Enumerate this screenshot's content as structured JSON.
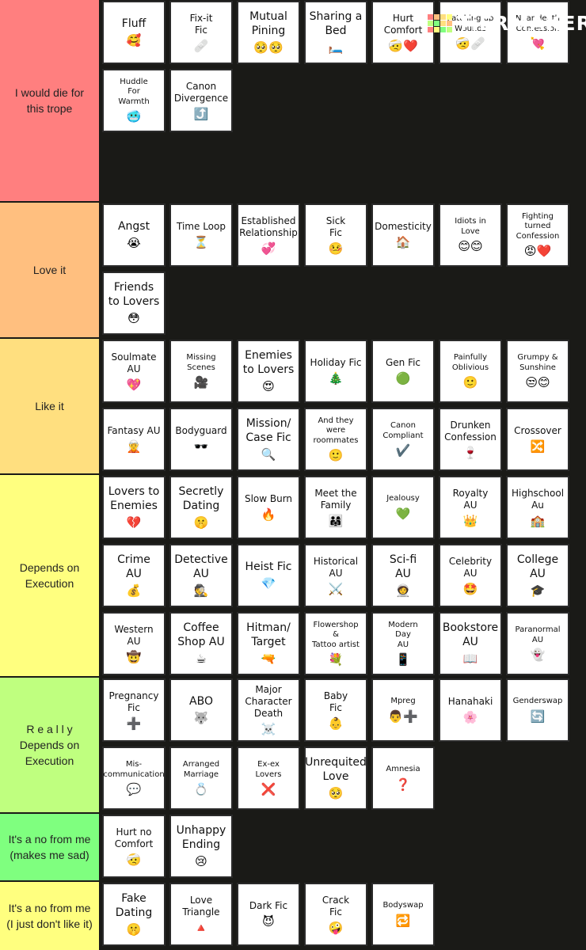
{
  "logo": {
    "text": "TiERMAKER",
    "grid_colors": [
      "#ff7f7f",
      "#ffbf7f",
      "#ffdf7f",
      "#ffff7f",
      "#bfff7f",
      "#7fff7f",
      "#ffdf7f",
      "#ffbf7f",
      "#ff7f7f",
      "#ffff7f",
      "#7fff7f",
      "#bfff7f"
    ]
  },
  "tiers": [
    {
      "label": "I would die for\nthis trope",
      "color": "#ff7f7f",
      "items": [
        {
          "title": "Fluff",
          "emoji": "🥰",
          "size": "lg"
        },
        {
          "title": "Fix-it\nFic",
          "emoji": "🩹",
          "size": "md"
        },
        {
          "title": "Mutual\nPining",
          "emoji": "🥺🥺",
          "size": "lg"
        },
        {
          "title": "Sharing a\nBed",
          "emoji": "🛏️",
          "size": "lg"
        },
        {
          "title": "Hurt\nComfort",
          "emoji": "🤕❤️",
          "size": "md"
        },
        {
          "title": "Patching up\nWounds",
          "emoji": "🤕🩹",
          "size": "sm"
        },
        {
          "title": "Near death\nConfession",
          "emoji": "💘",
          "size": "sm"
        },
        {
          "title": "Huddle\nFor\nWarmth",
          "emoji": "🥶",
          "size": "sm"
        },
        {
          "title": "Canon\nDivergence",
          "emoji": "⤴️",
          "size": "md"
        }
      ]
    },
    {
      "label": "Love it",
      "color": "#ffbf7f",
      "items": [
        {
          "title": "Angst",
          "emoji": "😭",
          "size": "lg"
        },
        {
          "title": "Time Loop",
          "emoji": "⏳",
          "size": "md"
        },
        {
          "title": "Established\nRelationship",
          "emoji": "💞",
          "size": "md"
        },
        {
          "title": "Sick\nFic",
          "emoji": "🤒",
          "size": "md"
        },
        {
          "title": "Domesticity",
          "emoji": "🏠",
          "size": "md"
        },
        {
          "title": "Idiots in\nLove",
          "emoji": "😊😊",
          "size": "sm"
        },
        {
          "title": "Fighting\nturned\nConfession",
          "emoji": "😡❤️",
          "size": "sm"
        },
        {
          "title": "Friends\nto Lovers",
          "emoji": "😳",
          "size": "lg"
        }
      ]
    },
    {
      "label": "Like it",
      "color": "#ffdf7f",
      "items": [
        {
          "title": "Soulmate\nAU",
          "emoji": "💖",
          "size": "md"
        },
        {
          "title": "Missing\nScenes",
          "emoji": "🎥",
          "size": "sm"
        },
        {
          "title": "Enemies\nto Lovers",
          "emoji": "😍",
          "size": "lg"
        },
        {
          "title": "Holiday Fic",
          "emoji": "🎄",
          "size": "md"
        },
        {
          "title": "Gen Fic",
          "emoji": "🟢",
          "size": "md"
        },
        {
          "title": "Painfully\nOblivious",
          "emoji": "🙂",
          "size": "sm"
        },
        {
          "title": "Grumpy &\nSunshine",
          "emoji": "😒😊",
          "size": "sm"
        },
        {
          "title": "Fantasy AU",
          "emoji": "🧝",
          "size": "md"
        },
        {
          "title": "Bodyguard",
          "emoji": "🕶️",
          "size": "md"
        },
        {
          "title": "Mission/\nCase Fic",
          "emoji": "🔍",
          "size": "lg"
        },
        {
          "title": "And they\nwere\nroommates",
          "emoji": "🙂",
          "size": "sm"
        },
        {
          "title": "Canon\nCompliant",
          "emoji": "✔️",
          "size": "sm"
        },
        {
          "title": "Drunken\nConfession",
          "emoji": "🍷",
          "size": "md"
        },
        {
          "title": "Crossover",
          "emoji": "🔀",
          "size": "md"
        }
      ]
    },
    {
      "label": "Depends on\nExecution",
      "color": "#ffff7f",
      "items": [
        {
          "title": "Lovers to\nEnemies",
          "emoji": "💔",
          "size": "lg"
        },
        {
          "title": "Secretly\nDating",
          "emoji": "🤫",
          "size": "lg"
        },
        {
          "title": "Slow Burn",
          "emoji": "🔥",
          "size": "md"
        },
        {
          "title": "Meet the\nFamily",
          "emoji": "👨‍👩‍👧",
          "size": "md"
        },
        {
          "title": "Jealousy",
          "emoji": "💚",
          "size": "sm"
        },
        {
          "title": "Royalty\nAU",
          "emoji": "👑",
          "size": "md"
        },
        {
          "title": "Highschool\nAu",
          "emoji": "🏫",
          "size": "md"
        },
        {
          "title": "Crime\nAU",
          "emoji": "💰",
          "size": "lg"
        },
        {
          "title": "Detective\nAU",
          "emoji": "🕵️",
          "size": "lg"
        },
        {
          "title": "Heist Fic",
          "emoji": "💎",
          "size": "lg"
        },
        {
          "title": "Historical\nAU",
          "emoji": "⚔️",
          "size": "md"
        },
        {
          "title": "Sci-fi\nAU",
          "emoji": "🧑‍🚀",
          "size": "lg"
        },
        {
          "title": "Celebrity\nAU",
          "emoji": "🤩",
          "size": "md"
        },
        {
          "title": "College\nAU",
          "emoji": "🎓",
          "size": "lg"
        },
        {
          "title": "Western\nAU",
          "emoji": "🤠",
          "size": "md"
        },
        {
          "title": "Coffee\nShop AU",
          "emoji": "☕",
          "size": "lg"
        },
        {
          "title": "Hitman/\nTarget",
          "emoji": "🔫",
          "size": "lg"
        },
        {
          "title": "Flowershop\n&\nTattoo artist",
          "emoji": "💐",
          "size": "sm"
        },
        {
          "title": "Modern\nDay\nAU",
          "emoji": "📱",
          "size": "sm"
        },
        {
          "title": "Bookstore\nAU",
          "emoji": "📖",
          "size": "lg"
        },
        {
          "title": "Paranormal\nAU",
          "emoji": "👻",
          "size": "sm"
        }
      ]
    },
    {
      "label": "R e a l l y\nDepends on\nExecution",
      "color": "#bfff7f",
      "items": [
        {
          "title": "Pregnancy\nFic",
          "emoji": "➕",
          "size": "md"
        },
        {
          "title": "ABO",
          "emoji": "🐺",
          "size": "lg"
        },
        {
          "title": "Major\nCharacter\nDeath",
          "emoji": "☠️",
          "size": "md"
        },
        {
          "title": "Baby\nFic",
          "emoji": "👶",
          "size": "md"
        },
        {
          "title": "Mpreg",
          "emoji": "👨➕",
          "size": "sm"
        },
        {
          "title": "Hanahaki",
          "emoji": "🌸",
          "size": "md"
        },
        {
          "title": "Genderswap",
          "emoji": "🔄",
          "size": "sm"
        },
        {
          "title": "Mis-\ncommunication",
          "emoji": "💬",
          "size": "sm"
        },
        {
          "title": "Arranged\nMarriage",
          "emoji": "💍",
          "size": "sm"
        },
        {
          "title": "Ex-ex\nLovers",
          "emoji": "❌",
          "size": "sm"
        },
        {
          "title": "Unrequited\nLove",
          "emoji": "🥺",
          "size": "lg"
        },
        {
          "title": "Amnesia",
          "emoji": "❓",
          "size": "sm"
        }
      ]
    },
    {
      "label": "It's a no from me\n(makes me sad)",
      "color": "#7fff7f",
      "items": [
        {
          "title": "Hurt no\nComfort",
          "emoji": "🤕",
          "size": "md"
        },
        {
          "title": "Unhappy\nEnding",
          "emoji": "😢",
          "size": "lg"
        }
      ]
    },
    {
      "label": "It's a no from me\n(I just don't like it)",
      "color": "#ffff7f",
      "items": [
        {
          "title": "Fake\nDating",
          "emoji": "🤫",
          "size": "lg"
        },
        {
          "title": "Love\nTriangle",
          "emoji": "🔺",
          "size": "md"
        },
        {
          "title": "Dark Fic",
          "emoji": "😈",
          "size": "md"
        },
        {
          "title": "Crack\nFic",
          "emoji": "🤪",
          "size": "md"
        },
        {
          "title": "Bodyswap",
          "emoji": "🔁",
          "size": "sm"
        }
      ]
    }
  ]
}
